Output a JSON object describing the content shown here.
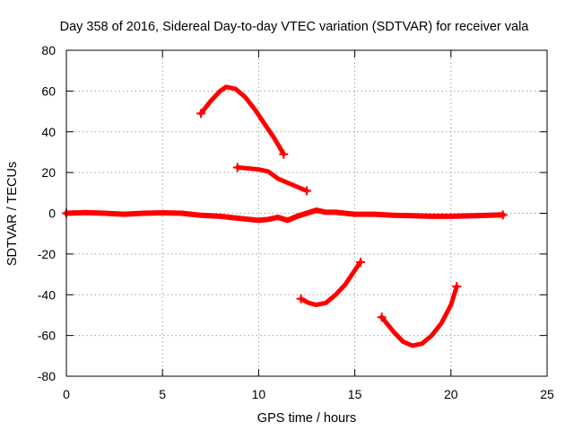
{
  "chart_data": {
    "type": "line",
    "title": "Day 358 of 2016, Sidereal Day-to-day VTEC variation (SDTVAR) for receiver vala",
    "xlabel": "GPS time / hours",
    "ylabel": "SDTVAR / TECUs",
    "xlim": [
      0,
      25
    ],
    "ylim": [
      -80,
      80
    ],
    "xticks": [
      0,
      5,
      10,
      15,
      20,
      25
    ],
    "yticks": [
      -80,
      -60,
      -40,
      -20,
      0,
      20,
      40,
      60,
      80
    ],
    "grid": true,
    "color": "#ff0000",
    "series": [
      {
        "name": "baseline",
        "points": [
          [
            0,
            0
          ],
          [
            1,
            0.3
          ],
          [
            2,
            0
          ],
          [
            3,
            -0.5
          ],
          [
            4,
            0
          ],
          [
            5,
            0.2
          ],
          [
            6,
            0
          ],
          [
            7,
            -1
          ],
          [
            8,
            -1.5
          ],
          [
            9,
            -2.5
          ],
          [
            10,
            -3.5
          ],
          [
            10.5,
            -3
          ],
          [
            11,
            -2
          ],
          [
            11.5,
            -3.5
          ],
          [
            12,
            -1.5
          ],
          [
            12.5,
            0
          ],
          [
            13,
            1.5
          ],
          [
            13.5,
            0.5
          ],
          [
            14,
            0.5
          ],
          [
            15,
            -0.5
          ],
          [
            16,
            -0.5
          ],
          [
            17,
            -1
          ],
          [
            18,
            -1.2
          ],
          [
            19,
            -1.5
          ],
          [
            20,
            -1.5
          ],
          [
            21,
            -1.3
          ],
          [
            22,
            -1
          ],
          [
            22.7,
            -0.8
          ]
        ]
      },
      {
        "name": "arc-positive-high",
        "points": [
          [
            7,
            49
          ],
          [
            7.5,
            55
          ],
          [
            8,
            60
          ],
          [
            8.3,
            62
          ],
          [
            8.8,
            61
          ],
          [
            9.3,
            57
          ],
          [
            9.8,
            51
          ],
          [
            10.3,
            44
          ],
          [
            10.8,
            37
          ],
          [
            11.3,
            29
          ]
        ]
      },
      {
        "name": "arc-positive-low",
        "points": [
          [
            8.9,
            22.5
          ],
          [
            9.5,
            22
          ],
          [
            10,
            21.5
          ],
          [
            10.5,
            20.5
          ],
          [
            11,
            17
          ],
          [
            11.5,
            15
          ],
          [
            12,
            13
          ],
          [
            12.5,
            11
          ]
        ]
      },
      {
        "name": "arc-negative-a",
        "points": [
          [
            12.2,
            -42
          ],
          [
            12.6,
            -44
          ],
          [
            13,
            -45
          ],
          [
            13.5,
            -44
          ],
          [
            14,
            -40
          ],
          [
            14.5,
            -35
          ],
          [
            15,
            -28
          ],
          [
            15.3,
            -24
          ]
        ]
      },
      {
        "name": "arc-negative-b",
        "points": [
          [
            16.4,
            -51
          ],
          [
            17,
            -58
          ],
          [
            17.5,
            -63
          ],
          [
            18,
            -65
          ],
          [
            18.5,
            -64
          ],
          [
            19,
            -60
          ],
          [
            19.5,
            -54
          ],
          [
            20,
            -45
          ],
          [
            20.3,
            -36
          ]
        ]
      }
    ]
  }
}
